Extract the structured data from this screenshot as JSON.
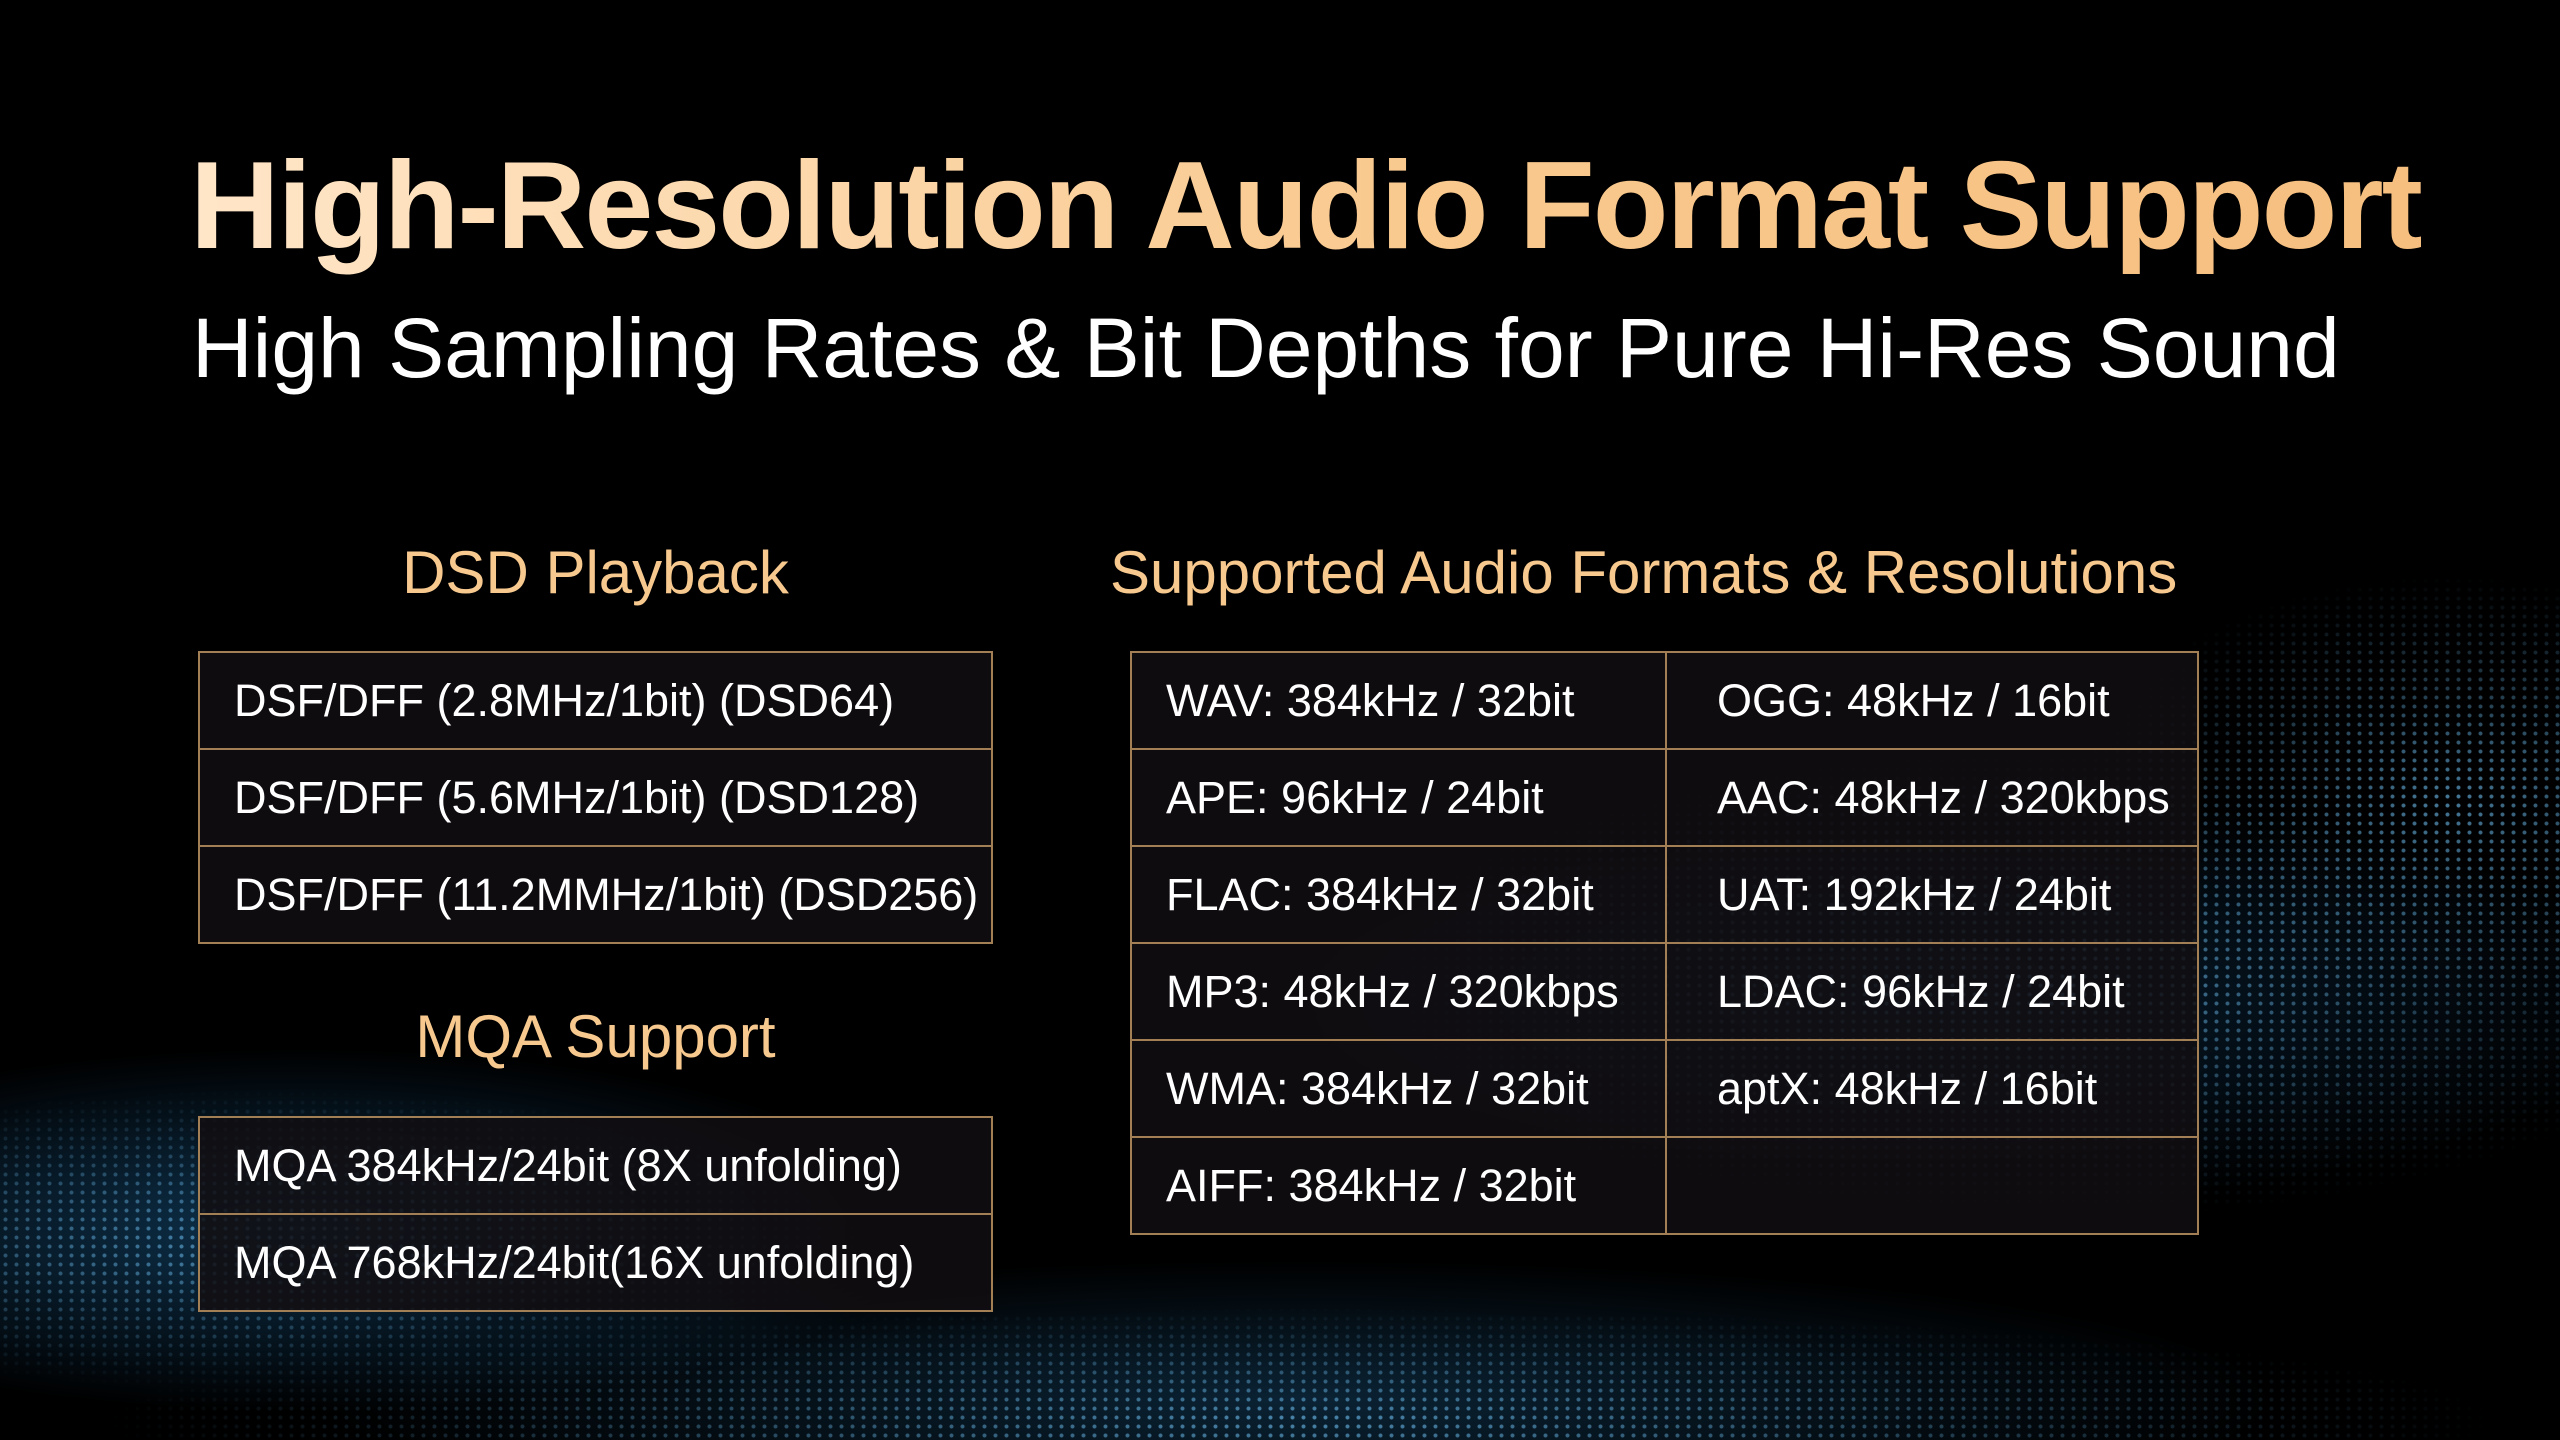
{
  "title": "High-Resolution Audio Format Support",
  "subtitle": "High Sampling Rates & Bit Depths for Pure Hi-Res Sound",
  "colors": {
    "accent": "#f7c98f",
    "border": "#a27f55",
    "background": "#000000",
    "wave": "#3a9ad9"
  },
  "dsd": {
    "heading": "DSD Playback",
    "rows": [
      "DSF/DFF (2.8MHz/1bit) (DSD64)",
      "DSF/DFF (5.6MHz/1bit) (DSD128)",
      "DSF/DFF (11.2MMHz/1bit) (DSD256)"
    ]
  },
  "mqa": {
    "heading": "MQA Support",
    "rows": [
      "MQA 384kHz/24bit (8X unfolding)",
      "MQA 768kHz/24bit(16X unfolding)"
    ]
  },
  "formats": {
    "heading": "Supported Audio Formats & Resolutions",
    "rows": [
      [
        "WAV: 384kHz / 32bit",
        "OGG: 48kHz / 16bit"
      ],
      [
        "APE: 96kHz / 24bit",
        "AAC: 48kHz / 320kbps"
      ],
      [
        "FLAC: 384kHz / 32bit",
        "UAT: 192kHz / 24bit"
      ],
      [
        "MP3: 48kHz / 320kbps",
        "LDAC: 96kHz / 24bit"
      ],
      [
        "WMA: 384kHz / 32bit",
        "aptX: 48kHz / 16bit"
      ],
      [
        "AIFF: 384kHz / 32bit",
        ""
      ]
    ]
  }
}
